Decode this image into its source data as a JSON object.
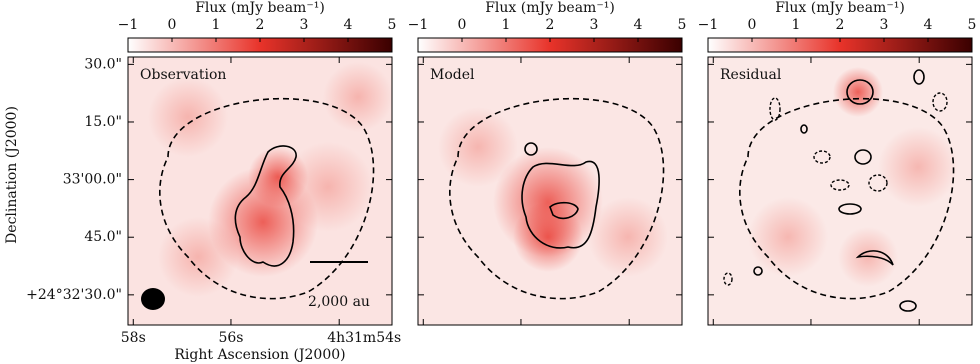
{
  "chart_data": [
    {
      "type": "image",
      "label": "Observation",
      "colorbar_label": "Flux (mJy beam⁻¹)",
      "clim": [
        -1,
        5
      ],
      "cticks": [
        {
          "value": -1,
          "label": "−1"
        },
        0,
        1,
        2,
        3,
        4,
        5
      ],
      "xlabel": "Right Ascension (J2000)",
      "ylabel": "Declination (J2000)",
      "x_tick_labels": [
        "58s",
        "56s",
        "4h31m54s"
      ],
      "y_tick_labels": [
        "30.0\"",
        "15.0\"",
        "33'00.0\"",
        "45.0\"",
        "+24°32'30.0\""
      ],
      "scalebar": "2,000 au",
      "colormap": [
        "#ffffff",
        "#e8332a",
        "#3a0000"
      ]
    },
    {
      "type": "image",
      "label": "Model",
      "colorbar_label": "Flux (mJy beam⁻¹)",
      "clim": [
        -1,
        5
      ],
      "cticks": [
        {
          "value": -1,
          "label": "−1"
        },
        0,
        1,
        2,
        3,
        4,
        5
      ],
      "colormap": [
        "#ffffff",
        "#e8332a",
        "#3a0000"
      ]
    },
    {
      "type": "image",
      "label": "Residual",
      "colorbar_label": "Flux (mJy beam⁻¹)",
      "clim": [
        -1,
        5
      ],
      "cticks": [
        {
          "value": -1,
          "label": "−1"
        },
        0,
        1,
        2,
        3,
        4,
        5
      ],
      "colormap": [
        "#ffffff",
        "#e8332a",
        "#3a0000"
      ]
    }
  ]
}
